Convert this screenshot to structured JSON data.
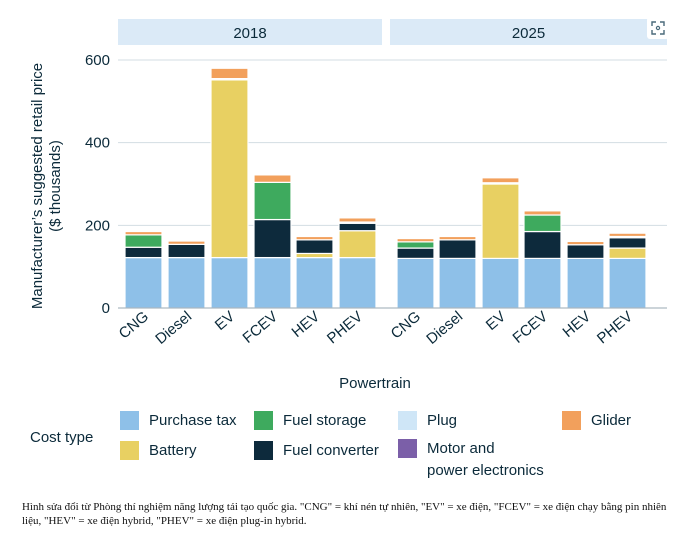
{
  "chart_data": {
    "type": "bar",
    "stacked": true,
    "panels": [
      "2018",
      "2025"
    ],
    "categories": [
      "CNG",
      "Diesel",
      "EV",
      "FCEV",
      "HEV",
      "PHEV"
    ],
    "xlabel": "Powertrain",
    "ylabel": "Manufacturer's suggested retail price ($ thousands)",
    "ylim": [
      0,
      640
    ],
    "yticks": [
      0,
      200,
      400,
      600
    ],
    "grid": "horizontal",
    "legend_title": "Cost type",
    "legend_position": "bottom",
    "series": [
      {
        "name": "Purchase tax",
        "color": "#8ec0e8",
        "values_2018": [
          122,
          122,
          122,
          122,
          122,
          122
        ],
        "values_2025": [
          120,
          120,
          120,
          120,
          120,
          120
        ]
      },
      {
        "name": "Battery",
        "color": "#e8d062",
        "values_2018": [
          0,
          0,
          430,
          0,
          10,
          65
        ],
        "values_2025": [
          0,
          0,
          180,
          0,
          0,
          25
        ]
      },
      {
        "name": "Motor and power electronics",
        "color": "#7b5fa8",
        "values_2018": [
          0,
          0,
          0,
          0,
          0,
          0
        ],
        "values_2025": [
          0,
          0,
          0,
          0,
          0,
          0
        ]
      },
      {
        "name": "Fuel converter",
        "color": "#0d2a3c",
        "values_2018": [
          25,
          32,
          0,
          92,
          33,
          18
        ],
        "values_2025": [
          25,
          45,
          0,
          65,
          33,
          25
        ]
      },
      {
        "name": "Fuel storage",
        "color": "#3eaa5e",
        "values_2018": [
          30,
          0,
          0,
          90,
          0,
          0
        ],
        "values_2025": [
          15,
          0,
          0,
          40,
          0,
          0
        ]
      },
      {
        "name": "Plug",
        "color": "#cfe6f7",
        "values_2018": [
          0,
          0,
          3,
          0,
          0,
          3
        ],
        "values_2025": [
          0,
          0,
          3,
          0,
          0,
          3
        ]
      },
      {
        "name": "Glider",
        "color": "#f2a05c",
        "values_2018": [
          8,
          8,
          25,
          18,
          8,
          10
        ],
        "values_2025": [
          8,
          8,
          12,
          10,
          8,
          8
        ]
      }
    ]
  },
  "legend_rows": {
    "col1": [
      "Purchase tax",
      "Battery"
    ],
    "col2": [
      "Fuel storage",
      "Fuel converter"
    ],
    "col3_plug": "Plug",
    "col3_motor_line1": "Motor and",
    "col3_motor_line2": "power electronics",
    "col4": "Glider"
  },
  "caption": "Hình sửa đổi từ Phòng thí nghiệm năng lượng tái tạo quốc gia. \"CNG\" = khí nén tự nhiên, \"EV\" = xe điện, \"FCEV\" = xe điện chạy bằng pin nhiên liệu, \"HEV\" = xe điện hybrid, \"PHEV\" = xe điện plug-in hybrid.",
  "icons": {
    "expand": "expand-icon"
  }
}
